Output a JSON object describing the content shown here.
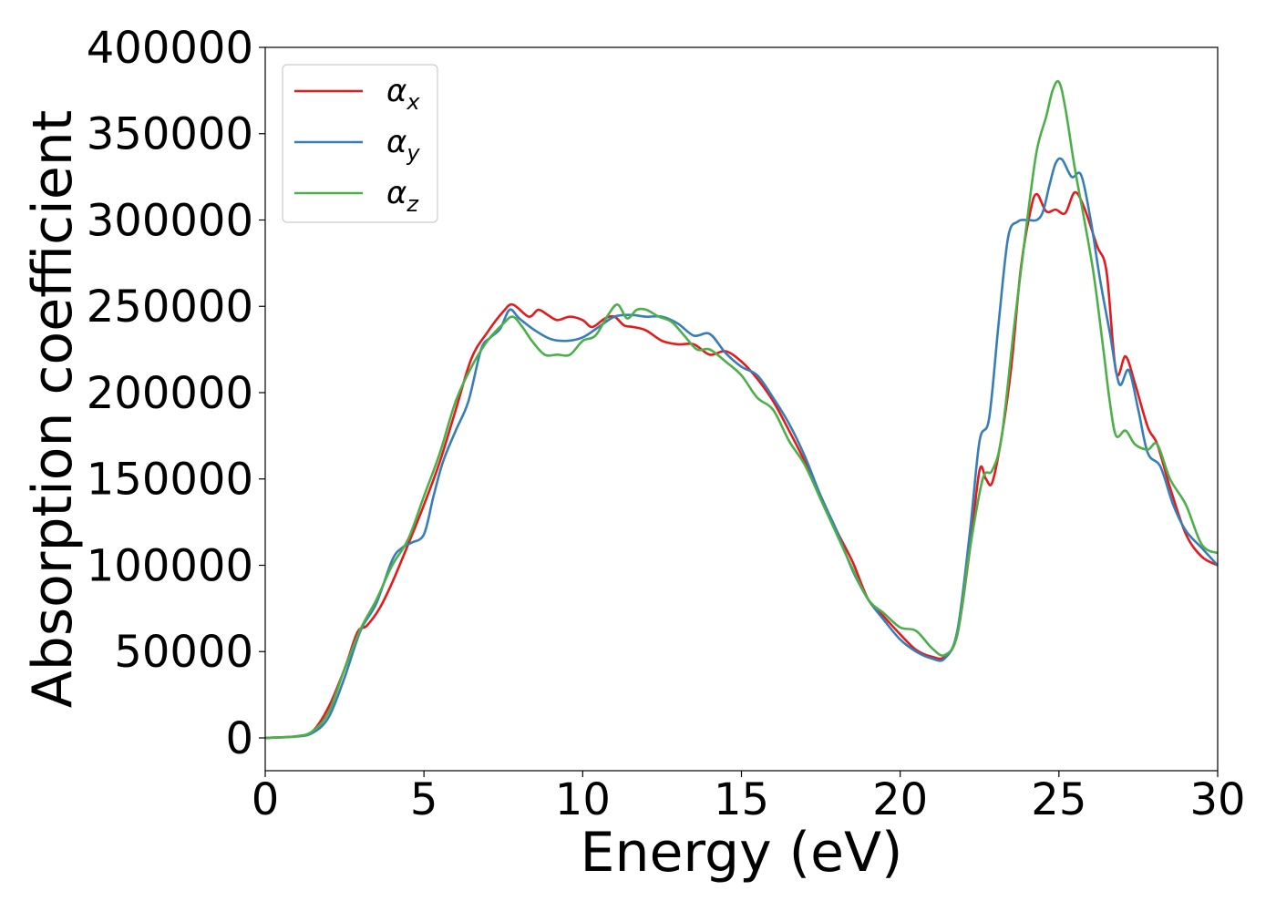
{
  "chart_data": {
    "type": "line",
    "title": "",
    "xlabel": "Energy (eV)",
    "ylabel": "Absorption coefficient",
    "xlim": [
      0,
      30
    ],
    "ylim": [
      -19000,
      400000
    ],
    "xticks": [
      0,
      5,
      10,
      15,
      20,
      25,
      30
    ],
    "xtick_labels": [
      "0",
      "5",
      "10",
      "15",
      "20",
      "25",
      "30"
    ],
    "yticks": [
      0,
      50000,
      100000,
      150000,
      200000,
      250000,
      300000,
      350000,
      400000
    ],
    "ytick_labels": [
      "0",
      "50000",
      "100000",
      "150000",
      "200000",
      "250000",
      "300000",
      "350000",
      "400000"
    ],
    "grid": false,
    "legend_position": "top-left",
    "series": [
      {
        "name": "αx",
        "legend_base": "α",
        "legend_sub": "x",
        "color": "#e41a1c",
        "x": [
          0,
          1,
          1.5,
          2,
          2.5,
          2.9,
          3.2,
          3.6,
          4,
          4.5,
          5,
          5.5,
          6,
          6.5,
          7,
          7.5,
          7.8,
          8.3,
          8.6,
          8.9,
          9.2,
          9.6,
          10,
          10.3,
          10.7,
          11,
          11.3,
          11.6,
          12,
          12.5,
          13,
          13.5,
          14,
          14.5,
          15,
          15.5,
          16,
          16.5,
          17,
          17.5,
          18,
          18.5,
          19,
          19.5,
          20,
          20.5,
          21,
          21.4,
          21.8,
          22.2,
          22.5,
          22.7,
          22.9,
          23.2,
          23.5,
          23.8,
          24.1,
          24.3,
          24.6,
          24.9,
          25.2,
          25.5,
          25.8,
          26.2,
          26.5,
          26.8,
          27.1,
          27.4,
          27.8,
          28.1,
          28.5,
          29,
          29.5,
          30
        ],
        "values": [
          0,
          1000,
          4000,
          18000,
          40000,
          61000,
          65000,
          75000,
          90000,
          112000,
          135000,
          160000,
          190000,
          220000,
          235000,
          247000,
          251000,
          244000,
          248000,
          245000,
          242000,
          244000,
          242000,
          238000,
          243000,
          244000,
          239000,
          238000,
          236000,
          230000,
          228000,
          228000,
          222000,
          224000,
          218000,
          208000,
          195000,
          178000,
          160000,
          140000,
          120000,
          102000,
          80000,
          70000,
          60000,
          51000,
          47000,
          47000,
          60000,
          110000,
          155000,
          150000,
          148000,
          175000,
          215000,
          272000,
          305000,
          315000,
          305000,
          306000,
          304000,
          316000,
          307000,
          285000,
          270000,
          212000,
          221000,
          205000,
          180000,
          170000,
          145000,
          118000,
          105000,
          100000
        ]
      },
      {
        "name": "αy",
        "legend_base": "α",
        "legend_sub": "y",
        "color": "#377eb8",
        "x": [
          0,
          1,
          1.5,
          2,
          2.5,
          3,
          3.5,
          4,
          4.3,
          4.6,
          5,
          5.3,
          5.6,
          6,
          6.4,
          6.8,
          7.1,
          7.4,
          7.7,
          8,
          8.5,
          9,
          9.5,
          10,
          10.5,
          11,
          11.5,
          12,
          12.5,
          13,
          13.5,
          14,
          14.5,
          15,
          15.5,
          16,
          16.5,
          17,
          17.5,
          18,
          18.5,
          19,
          19.5,
          20,
          20.5,
          21,
          21.4,
          21.8,
          22.2,
          22.5,
          22.8,
          23.1,
          23.4,
          23.7,
          24,
          24.3,
          24.5,
          24.7,
          24.9,
          25.1,
          25.4,
          25.7,
          26,
          26.3,
          26.6,
          26.9,
          27.2,
          27.5,
          27.8,
          28.2,
          28.6,
          29,
          29.5,
          30
        ],
        "values": [
          0,
          800,
          3000,
          12000,
          35000,
          62000,
          78000,
          103000,
          110000,
          113000,
          118000,
          140000,
          160000,
          178000,
          195000,
          225000,
          232000,
          237000,
          248000,
          243000,
          236000,
          231000,
          230000,
          232000,
          238000,
          244000,
          245000,
          244000,
          244000,
          240000,
          233000,
          234000,
          223000,
          215000,
          210000,
          197000,
          182000,
          163000,
          140000,
          120000,
          97000,
          80000,
          68000,
          57000,
          50000,
          46000,
          46000,
          62000,
          120000,
          172000,
          185000,
          240000,
          290000,
          299000,
          300000,
          300000,
          305000,
          320000,
          333000,
          335000,
          325000,
          326000,
          300000,
          265000,
          235000,
          205000,
          213000,
          190000,
          165000,
          157000,
          135000,
          120000,
          110000,
          100000
        ]
      },
      {
        "name": "αz",
        "legend_base": "α",
        "legend_sub": "z",
        "color": "#4daf4a",
        "x": [
          0,
          1,
          1.5,
          2,
          2.5,
          3,
          3.5,
          4,
          4.5,
          5,
          5.5,
          6,
          6.5,
          7,
          7.5,
          7.8,
          8.1,
          8.4,
          8.8,
          9.2,
          9.6,
          10,
          10.4,
          10.8,
          11.1,
          11.4,
          11.7,
          12,
          12.4,
          12.8,
          13.2,
          13.6,
          14,
          14.5,
          15,
          15.5,
          16,
          16.5,
          17,
          17.5,
          18,
          18.5,
          19,
          19.5,
          20,
          20.5,
          21,
          21.4,
          21.8,
          22.2,
          22.6,
          22.9,
          23.2,
          23.6,
          24,
          24.3,
          24.6,
          24.8,
          25,
          25.2,
          25.5,
          25.8,
          26.1,
          26.4,
          26.6,
          26.8,
          27.1,
          27.4,
          27.8,
          28.1,
          28.5,
          29,
          29.5,
          30
        ],
        "values": [
          0,
          1000,
          4000,
          15000,
          40000,
          63000,
          80000,
          100000,
          115000,
          140000,
          165000,
          195000,
          215000,
          230000,
          240000,
          244000,
          238000,
          230000,
          222000,
          222000,
          222000,
          230000,
          233000,
          245000,
          251000,
          243000,
          248000,
          248000,
          244000,
          241000,
          233000,
          225000,
          225000,
          218000,
          210000,
          197000,
          190000,
          172000,
          158000,
          138000,
          118000,
          98000,
          80000,
          72000,
          64000,
          62000,
          52000,
          48000,
          60000,
          110000,
          150000,
          155000,
          175000,
          240000,
          300000,
          340000,
          360000,
          375000,
          380000,
          365000,
          330000,
          300000,
          268000,
          225000,
          195000,
          175000,
          178000,
          170000,
          167000,
          170000,
          150000,
          135000,
          112000,
          107000
        ]
      }
    ]
  }
}
